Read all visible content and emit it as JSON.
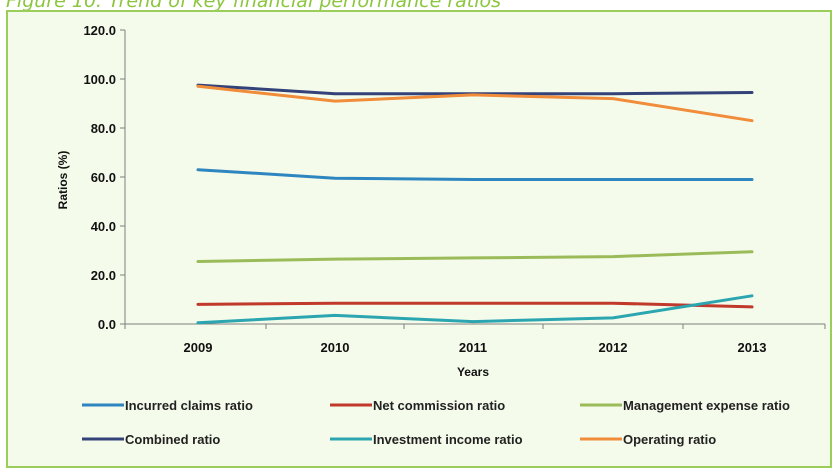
{
  "figure_caption": "Figure 10: Trend of key financial performance ratios",
  "chart_data": {
    "type": "line",
    "xlabel": "Years",
    "ylabel": "Ratios (%)",
    "ylim": [
      0,
      120
    ],
    "yticks": [
      "0.0",
      "20.0",
      "40.0",
      "60.0",
      "80.0",
      "100.0",
      "120.0"
    ],
    "categories": [
      "2009",
      "2010",
      "2011",
      "2012",
      "2013"
    ],
    "grid": false,
    "legend_position": "bottom",
    "series": [
      {
        "name": "Incurred claims ratio",
        "color": "#2e86c1",
        "values": [
          63.0,
          59.5,
          59.0,
          59.0,
          59.0
        ]
      },
      {
        "name": "Net commission ratio",
        "color": "#c0392b",
        "values": [
          8.0,
          8.5,
          8.5,
          8.5,
          7.0
        ]
      },
      {
        "name": "Management expense ratio",
        "color": "#9bbb59",
        "values": [
          25.5,
          26.5,
          27.0,
          27.5,
          29.5
        ]
      },
      {
        "name": "Combined ratio",
        "color": "#34427a",
        "values": [
          97.5,
          94.0,
          94.0,
          94.0,
          94.5
        ]
      },
      {
        "name": "Investment income ratio",
        "color": "#2ba6b0",
        "values": [
          0.5,
          3.5,
          1.0,
          2.5,
          11.5
        ]
      },
      {
        "name": "Operating ratio",
        "color": "#f08c3a",
        "values": [
          97.0,
          91.0,
          93.5,
          92.0,
          83.0
        ]
      }
    ]
  }
}
